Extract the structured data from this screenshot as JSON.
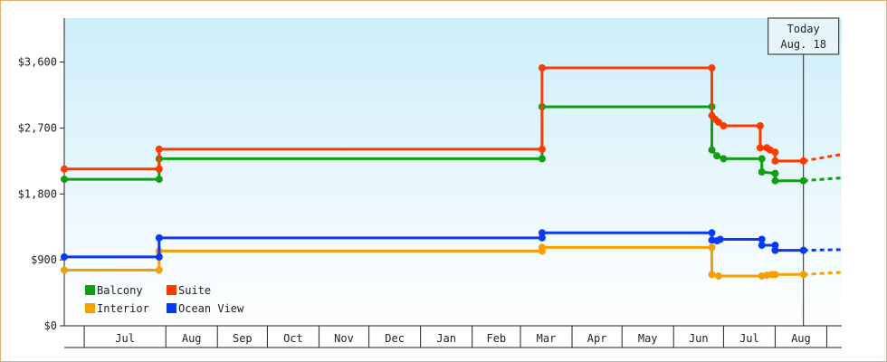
{
  "chart_data": {
    "type": "line",
    "step": true,
    "ylim": [
      0,
      4200
    ],
    "y_ticks": [
      {
        "value": 0,
        "label": "$0"
      },
      {
        "value": 900,
        "label": "$900"
      },
      {
        "value": 1800,
        "label": "$1,800"
      },
      {
        "value": 2700,
        "label": "$2,700"
      },
      {
        "value": 3600,
        "label": "$3,600"
      }
    ],
    "x_start": "2023-06-01",
    "x_end": "2024-09-10",
    "x_month_labels": [
      {
        "date": "2023-07-01",
        "label": "Jul"
      },
      {
        "date": "2023-08-01",
        "label": "Aug"
      },
      {
        "date": "2023-09-01",
        "label": "Sep"
      },
      {
        "date": "2023-10-01",
        "label": "Oct"
      },
      {
        "date": "2023-11-01",
        "label": "Nov"
      },
      {
        "date": "2023-12-01",
        "label": "Dec"
      },
      {
        "date": "2024-01-01",
        "label": "Jan"
      },
      {
        "date": "2024-02-01",
        "label": "Feb"
      },
      {
        "date": "2024-03-01",
        "label": "Mar"
      },
      {
        "date": "2024-04-01",
        "label": "Apr"
      },
      {
        "date": "2024-05-01",
        "label": "May"
      },
      {
        "date": "2024-06-01",
        "label": "Jun"
      },
      {
        "date": "2024-07-01",
        "label": "Jul"
      },
      {
        "date": "2024-08-01",
        "label": "Aug"
      }
    ],
    "today": {
      "date": "2024-08-18",
      "line1": "Today",
      "line2": "Aug. 18"
    },
    "projection_end": "2024-09-10",
    "legend_position": "bottom-left",
    "grid": false,
    "series": [
      {
        "name": "Balcony",
        "color": "#129e12",
        "points": [
          {
            "x": "2023-06-01",
            "y": 2000
          },
          {
            "x": "2023-07-28",
            "y": 2000
          },
          {
            "x": "2023-07-28",
            "y": 2280
          },
          {
            "x": "2024-03-14",
            "y": 2280
          },
          {
            "x": "2024-03-14",
            "y": 2990
          },
          {
            "x": "2024-06-24",
            "y": 2990
          },
          {
            "x": "2024-06-24",
            "y": 2400
          },
          {
            "x": "2024-06-27",
            "y": 2320
          },
          {
            "x": "2024-07-01",
            "y": 2280
          },
          {
            "x": "2024-07-24",
            "y": 2280
          },
          {
            "x": "2024-07-24",
            "y": 2100
          },
          {
            "x": "2024-08-01",
            "y": 2080
          },
          {
            "x": "2024-08-01",
            "y": 1980
          },
          {
            "x": "2024-08-18",
            "y": 1980
          }
        ],
        "projection_end_value": 2020
      },
      {
        "name": "Suite",
        "color": "#ff3a00",
        "points": [
          {
            "x": "2023-06-01",
            "y": 2140
          },
          {
            "x": "2023-07-28",
            "y": 2140
          },
          {
            "x": "2023-07-28",
            "y": 2410
          },
          {
            "x": "2024-03-14",
            "y": 2410
          },
          {
            "x": "2024-03-14",
            "y": 3520
          },
          {
            "x": "2024-06-24",
            "y": 3520
          },
          {
            "x": "2024-06-24",
            "y": 2870
          },
          {
            "x": "2024-06-26",
            "y": 2820
          },
          {
            "x": "2024-06-28",
            "y": 2780
          },
          {
            "x": "2024-07-01",
            "y": 2730
          },
          {
            "x": "2024-07-23",
            "y": 2730
          },
          {
            "x": "2024-07-23",
            "y": 2430
          },
          {
            "x": "2024-07-27",
            "y": 2430
          },
          {
            "x": "2024-07-29",
            "y": 2400
          },
          {
            "x": "2024-08-01",
            "y": 2370
          },
          {
            "x": "2024-08-01",
            "y": 2250
          },
          {
            "x": "2024-08-18",
            "y": 2250
          }
        ],
        "projection_end_value": 2340
      },
      {
        "name": "Interior",
        "color": "#f5a000",
        "points": [
          {
            "x": "2023-06-01",
            "y": 760
          },
          {
            "x": "2023-07-28",
            "y": 760
          },
          {
            "x": "2023-07-28",
            "y": 1020
          },
          {
            "x": "2024-03-14",
            "y": 1020
          },
          {
            "x": "2024-03-14",
            "y": 1070
          },
          {
            "x": "2024-06-24",
            "y": 1070
          },
          {
            "x": "2024-06-24",
            "y": 700
          },
          {
            "x": "2024-06-28",
            "y": 680
          },
          {
            "x": "2024-07-24",
            "y": 680
          },
          {
            "x": "2024-07-27",
            "y": 690
          },
          {
            "x": "2024-07-30",
            "y": 700
          },
          {
            "x": "2024-08-01",
            "y": 700
          },
          {
            "x": "2024-08-18",
            "y": 700
          }
        ],
        "projection_end_value": 730
      },
      {
        "name": "Ocean View",
        "color": "#0a3af0",
        "points": [
          {
            "x": "2023-06-01",
            "y": 940
          },
          {
            "x": "2023-07-28",
            "y": 940
          },
          {
            "x": "2023-07-28",
            "y": 1200
          },
          {
            "x": "2024-03-14",
            "y": 1200
          },
          {
            "x": "2024-03-14",
            "y": 1270
          },
          {
            "x": "2024-06-24",
            "y": 1270
          },
          {
            "x": "2024-06-24",
            "y": 1170
          },
          {
            "x": "2024-06-27",
            "y": 1160
          },
          {
            "x": "2024-06-29",
            "y": 1180
          },
          {
            "x": "2024-07-24",
            "y": 1180
          },
          {
            "x": "2024-07-24",
            "y": 1100
          },
          {
            "x": "2024-08-01",
            "y": 1100
          },
          {
            "x": "2024-08-01",
            "y": 1030
          },
          {
            "x": "2024-08-18",
            "y": 1030
          }
        ],
        "projection_end_value": 1040
      }
    ]
  }
}
